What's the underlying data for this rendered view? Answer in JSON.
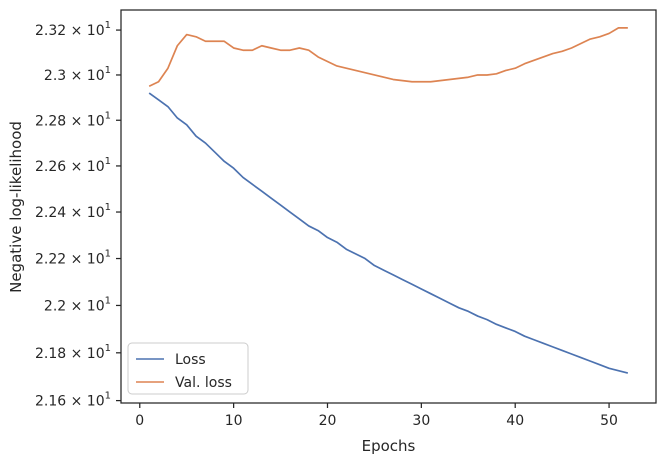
{
  "chart_data": {
    "type": "line",
    "title": "",
    "xlabel": "Epochs",
    "ylabel": "Negative log-likelihood",
    "xlim": [
      -2,
      55
    ],
    "ylim": [
      21.59,
      23.29
    ],
    "xticks": [
      0,
      10,
      20,
      30,
      40,
      50
    ],
    "yticks": [
      21.6,
      21.8,
      22.0,
      22.2,
      22.4,
      22.6,
      22.8,
      23.0,
      23.2
    ],
    "ytick_labels": [
      {
        "mantissa": "2.16",
        "times": "×",
        "base": "10",
        "exp": "1"
      },
      {
        "mantissa": "2.18",
        "times": "×",
        "base": "10",
        "exp": "1"
      },
      {
        "mantissa": "2.2",
        "times": "×",
        "base": "10",
        "exp": "1"
      },
      {
        "mantissa": "2.22",
        "times": "×",
        "base": "10",
        "exp": "1"
      },
      {
        "mantissa": "2.24",
        "times": "×",
        "base": "10",
        "exp": "1"
      },
      {
        "mantissa": "2.26",
        "times": "×",
        "base": "10",
        "exp": "1"
      },
      {
        "mantissa": "2.28",
        "times": "×",
        "base": "10",
        "exp": "1"
      },
      {
        "mantissa": "2.3",
        "times": "×",
        "base": "10",
        "exp": "1"
      },
      {
        "mantissa": "2.32",
        "times": "×",
        "base": "10",
        "exp": "1"
      }
    ],
    "y_scale": "log",
    "grid": false,
    "legend_position": "lower-left",
    "x": [
      1,
      2,
      3,
      4,
      5,
      6,
      7,
      8,
      9,
      10,
      11,
      12,
      13,
      14,
      15,
      16,
      17,
      18,
      19,
      20,
      21,
      22,
      23,
      24,
      25,
      26,
      27,
      28,
      29,
      30,
      31,
      32,
      33,
      34,
      35,
      36,
      37,
      38,
      39,
      40,
      41,
      42,
      43,
      44,
      45,
      46,
      47,
      48,
      49,
      50,
      51,
      52
    ],
    "series": [
      {
        "name": "Loss",
        "color": "#4c72b0",
        "values": [
          22.92,
          22.89,
          22.86,
          22.81,
          22.78,
          22.73,
          22.7,
          22.66,
          22.62,
          22.59,
          22.55,
          22.52,
          22.49,
          22.46,
          22.43,
          22.4,
          22.37,
          22.34,
          22.32,
          22.29,
          22.27,
          22.24,
          22.22,
          22.2,
          22.17,
          22.15,
          22.13,
          22.11,
          22.09,
          22.07,
          22.05,
          22.03,
          22.01,
          21.99,
          21.975,
          21.955,
          21.94,
          21.92,
          21.905,
          21.89,
          21.87,
          21.855,
          21.84,
          21.825,
          21.81,
          21.795,
          21.78,
          21.765,
          21.75,
          21.735,
          21.725,
          21.715
        ]
      },
      {
        "name": "Val. loss",
        "color": "#dd8452",
        "values": [
          22.95,
          22.97,
          23.03,
          23.13,
          23.18,
          23.17,
          23.15,
          23.15,
          23.15,
          23.12,
          23.11,
          23.11,
          23.13,
          23.12,
          23.11,
          23.11,
          23.12,
          23.11,
          23.08,
          23.06,
          23.04,
          23.03,
          23.02,
          23.01,
          23.0,
          22.99,
          22.98,
          22.975,
          22.97,
          22.97,
          22.97,
          22.975,
          22.98,
          22.985,
          22.99,
          23.0,
          23.0,
          23.005,
          23.02,
          23.03,
          23.05,
          23.065,
          23.08,
          23.095,
          23.105,
          23.12,
          23.14,
          23.16,
          23.17,
          23.185,
          23.21,
          23.21
        ]
      }
    ]
  }
}
